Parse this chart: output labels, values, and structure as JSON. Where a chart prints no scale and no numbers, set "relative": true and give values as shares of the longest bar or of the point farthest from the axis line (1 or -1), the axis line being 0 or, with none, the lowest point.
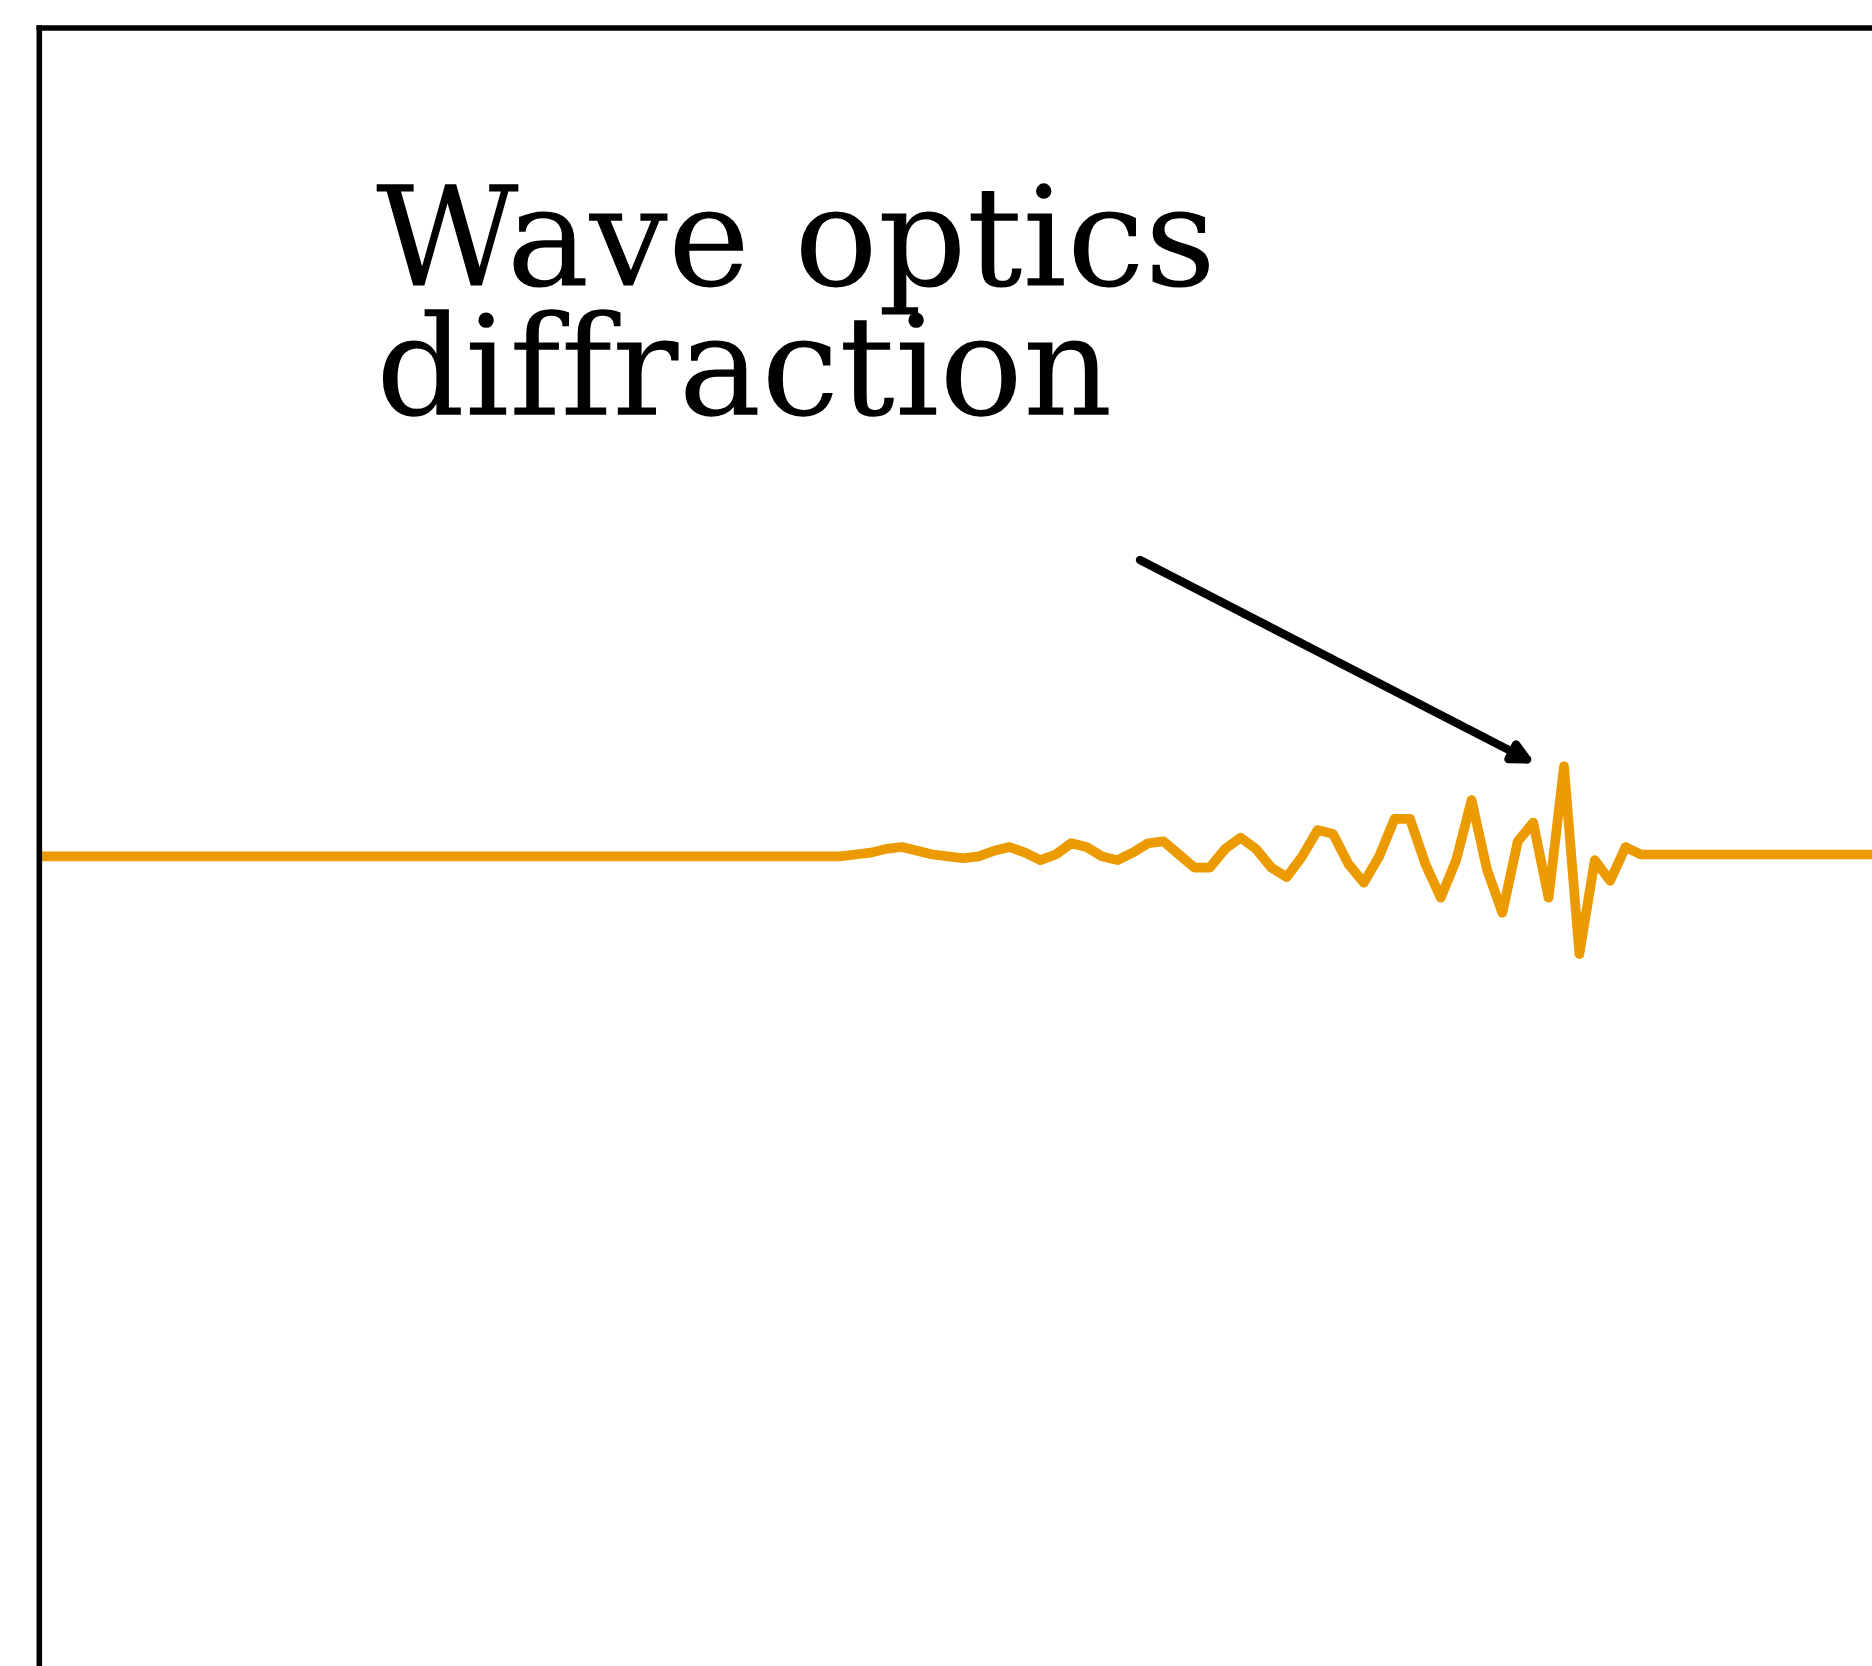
{
  "chart_data": {
    "type": "line",
    "relative": true,
    "categories": [
      null,
      null,
      null,
      null,
      null,
      null,
      null,
      null,
      null,
      null,
      null,
      null,
      null,
      null,
      null,
      null,
      null,
      null,
      null,
      null,
      null,
      null,
      null,
      null,
      null,
      null,
      null,
      null,
      null,
      null,
      null,
      null,
      null,
      null,
      null,
      null,
      null,
      null,
      null,
      null,
      null,
      null,
      null,
      null,
      null,
      null,
      null,
      null,
      null,
      null,
      null,
      null,
      null,
      null,
      null,
      null,
      null,
      null,
      null,
      null,
      null,
      null,
      null,
      null,
      null,
      null,
      null,
      null,
      null,
      null,
      null,
      null,
      null,
      null,
      null,
      null,
      null,
      null,
      null,
      null,
      null,
      null,
      null,
      null,
      null,
      null,
      null,
      null,
      null,
      null,
      null,
      null,
      null,
      null,
      null,
      null,
      null,
      null,
      null,
      null,
      null,
      null,
      null,
      null,
      null,
      null,
      null,
      null,
      null,
      null,
      null,
      null,
      null,
      null,
      null,
      null,
      null,
      null,
      null,
      null
    ],
    "series": [
      {
        "color": "#eb9a00",
        "values": [
          0.52,
          0.52,
          0.52,
          0.52,
          0.52,
          0.52,
          0.52,
          0.52,
          0.52,
          0.52,
          0.52,
          0.52,
          0.52,
          0.52,
          0.52,
          0.52,
          0.52,
          0.52,
          0.52,
          0.52,
          0.52,
          0.52,
          0.52,
          0.52,
          0.52,
          0.52,
          0.52,
          0.52,
          0.52,
          0.52,
          0.52,
          0.52,
          0.52,
          0.52,
          0.52,
          0.52,
          0.52,
          0.52,
          0.52,
          0.52,
          0.52,
          0.52,
          0.52,
          0.52,
          0.52,
          0.52,
          0.52,
          0.52,
          0.52,
          0.52,
          0.52,
          0.52,
          0.52,
          0.53,
          0.54,
          0.56,
          0.57,
          0.55,
          0.53,
          0.52,
          0.51,
          0.52,
          0.55,
          0.57,
          0.54,
          0.5,
          0.53,
          0.59,
          0.57,
          0.52,
          0.5,
          0.54,
          0.59,
          0.6,
          0.53,
          0.46,
          0.46,
          0.56,
          0.62,
          0.56,
          0.46,
          0.41,
          0.52,
          0.66,
          0.64,
          0.48,
          0.38,
          0.52,
          0.72,
          0.72,
          0.48,
          0.3,
          0.5,
          0.82,
          0.45,
          0.22,
          0.6,
          0.7,
          0.3,
          1.0,
          0,
          0.5,
          0.39,
          0.57,
          0.53,
          0.53,
          0.53,
          0.53,
          0.53,
          0.53,
          0.53,
          0.53,
          0.53,
          0.53,
          0.53,
          0.53,
          0.53,
          0.53,
          0.53,
          0.53
        ]
      }
    ],
    "annotations": [
      "Wave optics\ndiffraction"
    ]
  }
}
